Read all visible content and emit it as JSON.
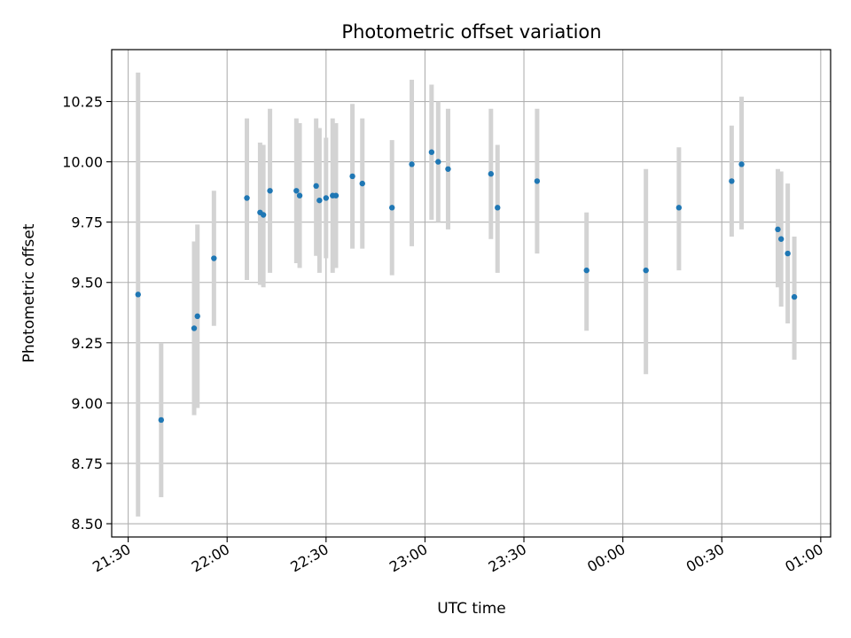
{
  "chart_data": {
    "type": "scatter",
    "title": "Photometric offset variation",
    "xlabel": "UTC time",
    "ylabel": "Photometric offset",
    "x_axis_kind": "time",
    "xlim": [
      "21:25",
      "01:03"
    ],
    "ylim": [
      8.445,
      10.465
    ],
    "grid": true,
    "x_ticks": [
      {
        "t": "21:30",
        "label": "21:30"
      },
      {
        "t": "22:00",
        "label": "22:00"
      },
      {
        "t": "22:30",
        "label": "22:30"
      },
      {
        "t": "23:00",
        "label": "23:00"
      },
      {
        "t": "23:30",
        "label": "23:30"
      },
      {
        "t": "00:00",
        "label": "00:00"
      },
      {
        "t": "00:30",
        "label": "00:30"
      },
      {
        "t": "01:00",
        "label": "01:00"
      }
    ],
    "y_ticks": [
      {
        "v": 8.5,
        "label": "8.50"
      },
      {
        "v": 8.75,
        "label": "8.75"
      },
      {
        "v": 9.0,
        "label": "9.00"
      },
      {
        "v": 9.25,
        "label": "9.25"
      },
      {
        "v": 9.5,
        "label": "9.50"
      },
      {
        "v": 9.75,
        "label": "9.75"
      },
      {
        "v": 10.0,
        "label": "10.00"
      },
      {
        "v": 10.25,
        "label": "10.25"
      }
    ],
    "point_color": "#1f77b4",
    "errorbar_color": "#d3d3d3",
    "points": [
      {
        "t": "21:33",
        "y": 9.45,
        "low": 8.53,
        "high": 10.37
      },
      {
        "t": "21:40",
        "y": 8.93,
        "low": 8.61,
        "high": 9.25
      },
      {
        "t": "21:50",
        "y": 9.31,
        "low": 8.95,
        "high": 9.67
      },
      {
        "t": "21:51",
        "y": 9.36,
        "low": 8.98,
        "high": 9.74
      },
      {
        "t": "21:56",
        "y": 9.6,
        "low": 9.32,
        "high": 9.88
      },
      {
        "t": "22:06",
        "y": 9.85,
        "low": 9.51,
        "high": 10.18
      },
      {
        "t": "22:10",
        "y": 9.79,
        "low": 9.49,
        "high": 10.08
      },
      {
        "t": "22:11",
        "y": 9.78,
        "low": 9.48,
        "high": 10.07
      },
      {
        "t": "22:13",
        "y": 9.88,
        "low": 9.54,
        "high": 10.22
      },
      {
        "t": "22:21",
        "y": 9.88,
        "low": 9.58,
        "high": 10.18
      },
      {
        "t": "22:22",
        "y": 9.86,
        "low": 9.56,
        "high": 10.16
      },
      {
        "t": "22:27",
        "y": 9.9,
        "low": 9.61,
        "high": 10.18
      },
      {
        "t": "22:28",
        "y": 9.84,
        "low": 9.54,
        "high": 10.14
      },
      {
        "t": "22:30",
        "y": 9.85,
        "low": 9.6,
        "high": 10.1
      },
      {
        "t": "22:32",
        "y": 9.86,
        "low": 9.54,
        "high": 10.18
      },
      {
        "t": "22:33",
        "y": 9.86,
        "low": 9.56,
        "high": 10.16
      },
      {
        "t": "22:38",
        "y": 9.94,
        "low": 9.64,
        "high": 10.24
      },
      {
        "t": "22:41",
        "y": 9.91,
        "low": 9.64,
        "high": 10.18
      },
      {
        "t": "22:50",
        "y": 9.81,
        "low": 9.53,
        "high": 10.09
      },
      {
        "t": "22:56",
        "y": 9.99,
        "low": 9.65,
        "high": 10.34
      },
      {
        "t": "23:02",
        "y": 10.04,
        "low": 9.76,
        "high": 10.32
      },
      {
        "t": "23:04",
        "y": 10.0,
        "low": 9.75,
        "high": 10.25
      },
      {
        "t": "23:07",
        "y": 9.97,
        "low": 9.72,
        "high": 10.22
      },
      {
        "t": "23:20",
        "y": 9.95,
        "low": 9.68,
        "high": 10.22
      },
      {
        "t": "23:22",
        "y": 9.81,
        "low": 9.54,
        "high": 10.07
      },
      {
        "t": "23:34",
        "y": 9.92,
        "low": 9.62,
        "high": 10.22
      },
      {
        "t": "23:49",
        "y": 9.55,
        "low": 9.3,
        "high": 9.79
      },
      {
        "t": "00:07",
        "y": 9.55,
        "low": 9.12,
        "high": 9.97
      },
      {
        "t": "00:17",
        "y": 9.81,
        "low": 9.55,
        "high": 10.06
      },
      {
        "t": "00:33",
        "y": 9.92,
        "low": 9.69,
        "high": 10.15
      },
      {
        "t": "00:36",
        "y": 9.99,
        "low": 9.72,
        "high": 10.27
      },
      {
        "t": "00:47",
        "y": 9.72,
        "low": 9.48,
        "high": 9.97
      },
      {
        "t": "00:48",
        "y": 9.68,
        "low": 9.4,
        "high": 9.96
      },
      {
        "t": "00:50",
        "y": 9.62,
        "low": 9.33,
        "high": 9.91
      },
      {
        "t": "00:52",
        "y": 9.44,
        "low": 9.18,
        "high": 9.69
      }
    ]
  }
}
